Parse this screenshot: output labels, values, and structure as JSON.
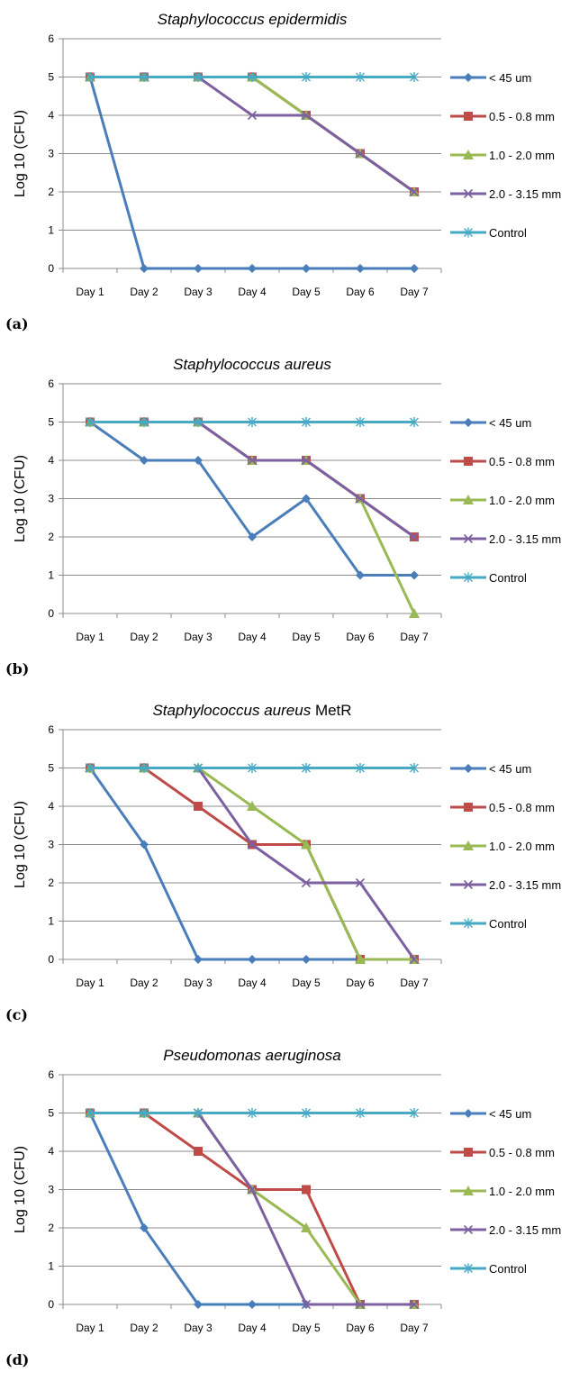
{
  "chart_data": [
    {
      "type": "line",
      "title": "Staphylococcus epidermidis",
      "title_suffix": "",
      "panel_label": "(a)",
      "ylabel": "Log 10 (CFU)",
      "xlabel": "",
      "ylim": [
        0,
        6
      ],
      "y_ticks": [
        "0",
        "1",
        "2",
        "3",
        "4",
        "5",
        "6"
      ],
      "categories": [
        "Day 1",
        "Day 2",
        "Day 3",
        "Day 4",
        "Day 5",
        "Day 6",
        "Day 7"
      ],
      "legend_position": "right",
      "grid": true,
      "series": [
        {
          "name": "< 45 um",
          "color": "#4a7ebb",
          "marker": "diamond",
          "values": [
            5,
            0,
            0,
            0,
            0,
            0,
            0
          ]
        },
        {
          "name": "0.5 - 0.8 mm",
          "color": "#be4b48",
          "marker": "square",
          "values": [
            5,
            5,
            5,
            5,
            4,
            3,
            2
          ]
        },
        {
          "name": "1.0 - 2.0 mm",
          "color": "#98b954",
          "marker": "triangle",
          "values": [
            5,
            5,
            5,
            5,
            4,
            3,
            2
          ]
        },
        {
          "name": "2.0 - 3.15 mm",
          "color": "#7d60a0",
          "marker": "x",
          "values": [
            5,
            5,
            5,
            4,
            4,
            3,
            2
          ]
        },
        {
          "name": "Control",
          "color": "#46aac5",
          "marker": "star",
          "values": [
            5,
            5,
            5,
            5,
            5,
            5,
            5
          ]
        }
      ]
    },
    {
      "type": "line",
      "title": "Staphylococcus aureus",
      "title_suffix": "",
      "panel_label": "(b)",
      "ylabel": "Log 10 (CFU)",
      "xlabel": "",
      "ylim": [
        0,
        6
      ],
      "y_ticks": [
        "0",
        "1",
        "2",
        "3",
        "4",
        "5",
        "6"
      ],
      "categories": [
        "Day 1",
        "Day 2",
        "Day 3",
        "Day 4",
        "Day 5",
        "Day 6",
        "Day 7"
      ],
      "legend_position": "right",
      "grid": true,
      "series": [
        {
          "name": "< 45 um",
          "color": "#4a7ebb",
          "marker": "diamond",
          "values": [
            5,
            4,
            4,
            2,
            3,
            1,
            1
          ]
        },
        {
          "name": "0.5 - 0.8 mm",
          "color": "#be4b48",
          "marker": "square",
          "values": [
            5,
            5,
            5,
            4,
            4,
            3,
            2
          ]
        },
        {
          "name": "1.0 - 2.0 mm",
          "color": "#98b954",
          "marker": "triangle",
          "values": [
            5,
            5,
            5,
            4,
            4,
            3,
            0
          ]
        },
        {
          "name": "2.0 - 3.15 mm",
          "color": "#7d60a0",
          "marker": "x",
          "values": [
            5,
            5,
            5,
            4,
            4,
            3,
            2
          ]
        },
        {
          "name": "Control",
          "color": "#46aac5",
          "marker": "star",
          "values": [
            5,
            5,
            5,
            5,
            5,
            5,
            5
          ]
        }
      ]
    },
    {
      "type": "line",
      "title": "Staphylococcus aureus",
      "title_suffix": " MetR",
      "panel_label": "(c)",
      "ylabel": "Log 10 (CFU)",
      "xlabel": "",
      "ylim": [
        0,
        6
      ],
      "y_ticks": [
        "0",
        "1",
        "2",
        "3",
        "4",
        "5",
        "6"
      ],
      "categories": [
        "Day 1",
        "Day 2",
        "Day 3",
        "Day 4",
        "Day 5",
        "Day 6",
        "Day 7"
      ],
      "legend_position": "right",
      "grid": true,
      "series": [
        {
          "name": "< 45 um",
          "color": "#4a7ebb",
          "marker": "diamond",
          "values": [
            5,
            3,
            0,
            0,
            0,
            0,
            0
          ]
        },
        {
          "name": "0.5 - 0.8 mm",
          "color": "#be4b48",
          "marker": "square",
          "values": [
            5,
            5,
            4,
            3,
            3,
            0,
            0
          ]
        },
        {
          "name": "1.0 - 2.0 mm",
          "color": "#98b954",
          "marker": "triangle",
          "values": [
            5,
            5,
            5,
            4,
            3,
            0,
            0
          ]
        },
        {
          "name": "2.0 - 3.15 mm",
          "color": "#7d60a0",
          "marker": "x",
          "values": [
            5,
            5,
            5,
            3,
            2,
            2,
            0
          ]
        },
        {
          "name": "Control",
          "color": "#46aac5",
          "marker": "star",
          "values": [
            5,
            5,
            5,
            5,
            5,
            5,
            5
          ]
        }
      ]
    },
    {
      "type": "line",
      "title": "Pseudomonas aeruginosa",
      "title_suffix": "",
      "panel_label": "(d)",
      "ylabel": "Log 10 (CFU)",
      "xlabel": "",
      "ylim": [
        0,
        6
      ],
      "y_ticks": [
        "0",
        "1",
        "2",
        "3",
        "4",
        "5",
        "6"
      ],
      "categories": [
        "Day 1",
        "Day 2",
        "Day 3",
        "Day 4",
        "Day 5",
        "Day 6",
        "Day 7"
      ],
      "legend_position": "right",
      "grid": true,
      "series": [
        {
          "name": "< 45 um",
          "color": "#4a7ebb",
          "marker": "diamond",
          "values": [
            5,
            2,
            0,
            0,
            0,
            0,
            0
          ]
        },
        {
          "name": "0.5 - 0.8 mm",
          "color": "#be4b48",
          "marker": "square",
          "values": [
            5,
            5,
            4,
            3,
            3,
            0,
            0
          ]
        },
        {
          "name": "1.0 - 2.0 mm",
          "color": "#98b954",
          "marker": "triangle",
          "values": [
            5,
            5,
            5,
            3,
            2,
            0,
            0
          ]
        },
        {
          "name": "2.0 - 3.15 mm",
          "color": "#7d60a0",
          "marker": "x",
          "values": [
            5,
            5,
            5,
            3,
            0,
            0,
            0
          ]
        },
        {
          "name": "Control",
          "color": "#46aac5",
          "marker": "star",
          "values": [
            5,
            5,
            5,
            5,
            5,
            5,
            5
          ]
        }
      ]
    }
  ]
}
